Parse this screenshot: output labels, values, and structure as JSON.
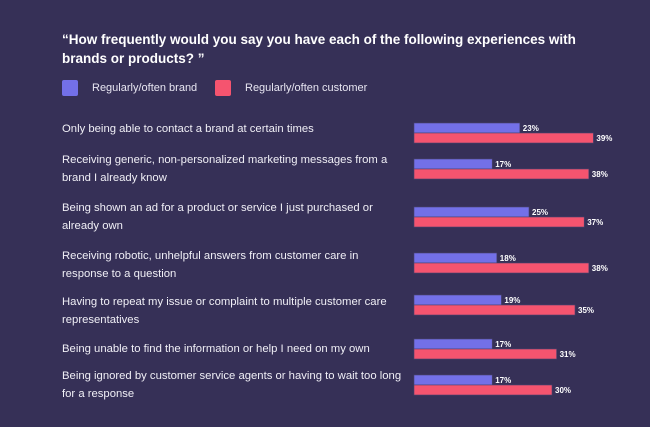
{
  "chart_data": {
    "type": "bar",
    "orientation": "horizontal",
    "title": "“How frequently would you say you have each of the following experiences with brands or products? ”",
    "categories": [
      "Only being able to contact a brand at certain times",
      "Receiving generic, non-personalized marketing messages from a brand I already know",
      "Being shown an ad for a product or service I just purchased or already own",
      "Receiving robotic, unhelpful answers from customer care in response to a question",
      "Having to repeat my issue or complaint to multiple customer care representatives",
      "Being unable to find the information or help I need on my own",
      "Being ignored by customer service agents or having to wait too long for a response"
    ],
    "series": [
      {
        "name": "Regularly/often brand",
        "color": "#7370e8",
        "values": [
          23,
          17,
          25,
          18,
          19,
          17,
          17
        ]
      },
      {
        "name": "Regularly/often customer",
        "color": "#f5546f",
        "values": [
          39,
          38,
          37,
          38,
          35,
          31,
          30
        ]
      }
    ],
    "value_format": "%",
    "legend_position": "top-left",
    "grid": false
  },
  "colors": {
    "background": "#363057"
  }
}
